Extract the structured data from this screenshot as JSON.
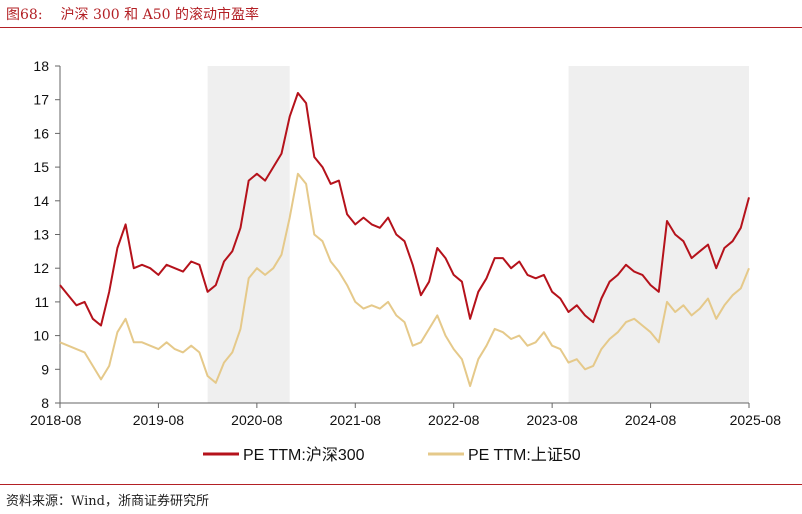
{
  "caption": {
    "figure_no": "图68:",
    "title": "沪深 300 和 A50 的滚动市盈率"
  },
  "source": "资料来源：Wind，浙商证券研究所",
  "chart_data": {
    "type": "line",
    "title": "沪深 300 和 A50 的滚动市盈率",
    "xlabel": "",
    "ylabel": "",
    "x_ticks": [
      "2018-08",
      "2019-08",
      "2020-08",
      "2021-08",
      "2022-08",
      "2023-08",
      "2024-08",
      "2025-08"
    ],
    "y_ticks": [
      8,
      9,
      10,
      11,
      12,
      13,
      14,
      15,
      16,
      17,
      18
    ],
    "ylim": [
      8,
      18
    ],
    "xlim": [
      "2018-08",
      "2025-08"
    ],
    "grid": false,
    "legend_position": "bottom",
    "shaded_periods": [
      {
        "start": "2020-02",
        "end": "2020-12"
      },
      {
        "start": "2023-10",
        "end": "2025-08"
      }
    ],
    "colors": {
      "shading": "#efefef",
      "axis": "#666666",
      "csi300": "#b5121b",
      "sse50": "#e5c98a"
    },
    "series": [
      {
        "name": "PE TTM:沪深300",
        "color": "#b5121b",
        "points": [
          [
            "2018-08",
            11.5
          ],
          [
            "2018-09",
            11.2
          ],
          [
            "2018-10",
            10.9
          ],
          [
            "2018-11",
            11.0
          ],
          [
            "2018-12",
            10.5
          ],
          [
            "2019-01",
            10.3
          ],
          [
            "2019-02",
            11.3
          ],
          [
            "2019-03",
            12.6
          ],
          [
            "2019-04",
            13.3
          ],
          [
            "2019-05",
            12.0
          ],
          [
            "2019-06",
            12.1
          ],
          [
            "2019-07",
            12.0
          ],
          [
            "2019-08",
            11.8
          ],
          [
            "2019-09",
            12.1
          ],
          [
            "2019-10",
            12.0
          ],
          [
            "2019-11",
            11.9
          ],
          [
            "2019-12",
            12.2
          ],
          [
            "2020-01",
            12.1
          ],
          [
            "2020-02",
            11.3
          ],
          [
            "2020-03",
            11.5
          ],
          [
            "2020-04",
            12.2
          ],
          [
            "2020-05",
            12.5
          ],
          [
            "2020-06",
            13.2
          ],
          [
            "2020-07",
            14.6
          ],
          [
            "2020-08",
            14.8
          ],
          [
            "2020-09",
            14.6
          ],
          [
            "2020-10",
            15.0
          ],
          [
            "2020-11",
            15.4
          ],
          [
            "2020-12",
            16.5
          ],
          [
            "2021-01",
            17.2
          ],
          [
            "2021-02",
            16.9
          ],
          [
            "2021-03",
            15.3
          ],
          [
            "2021-04",
            15.0
          ],
          [
            "2021-05",
            14.5
          ],
          [
            "2021-06",
            14.6
          ],
          [
            "2021-07",
            13.6
          ],
          [
            "2021-08",
            13.3
          ],
          [
            "2021-09",
            13.5
          ],
          [
            "2021-10",
            13.3
          ],
          [
            "2021-11",
            13.2
          ],
          [
            "2021-12",
            13.5
          ],
          [
            "2022-01",
            13.0
          ],
          [
            "2022-02",
            12.8
          ],
          [
            "2022-03",
            12.1
          ],
          [
            "2022-04",
            11.2
          ],
          [
            "2022-05",
            11.6
          ],
          [
            "2022-06",
            12.6
          ],
          [
            "2022-07",
            12.3
          ],
          [
            "2022-08",
            11.8
          ],
          [
            "2022-09",
            11.6
          ],
          [
            "2022-10",
            10.5
          ],
          [
            "2022-11",
            11.3
          ],
          [
            "2022-12",
            11.7
          ],
          [
            "2023-01",
            12.3
          ],
          [
            "2023-02",
            12.3
          ],
          [
            "2023-03",
            12.0
          ],
          [
            "2023-04",
            12.2
          ],
          [
            "2023-05",
            11.8
          ],
          [
            "2023-06",
            11.7
          ],
          [
            "2023-07",
            11.8
          ],
          [
            "2023-08",
            11.3
          ],
          [
            "2023-09",
            11.1
          ],
          [
            "2023-10",
            10.7
          ],
          [
            "2023-11",
            10.9
          ],
          [
            "2023-12",
            10.6
          ],
          [
            "2024-01",
            10.4
          ],
          [
            "2024-02",
            11.1
          ],
          [
            "2024-03",
            11.6
          ],
          [
            "2024-04",
            11.8
          ],
          [
            "2024-05",
            12.1
          ],
          [
            "2024-06",
            11.9
          ],
          [
            "2024-07",
            11.8
          ],
          [
            "2024-08",
            11.5
          ],
          [
            "2024-09",
            11.3
          ],
          [
            "2024-10",
            13.4
          ],
          [
            "2024-11",
            13.0
          ],
          [
            "2024-12",
            12.8
          ],
          [
            "2025-01",
            12.3
          ],
          [
            "2025-02",
            12.5
          ],
          [
            "2025-03",
            12.7
          ],
          [
            "2025-04",
            12.0
          ],
          [
            "2025-05",
            12.6
          ],
          [
            "2025-06",
            12.8
          ],
          [
            "2025-07",
            13.2
          ],
          [
            "2025-08",
            14.1
          ]
        ]
      },
      {
        "name": "PE TTM:上证50",
        "color": "#e5c98a",
        "points": [
          [
            "2018-08",
            9.8
          ],
          [
            "2018-09",
            9.7
          ],
          [
            "2018-10",
            9.6
          ],
          [
            "2018-11",
            9.5
          ],
          [
            "2018-12",
            9.1
          ],
          [
            "2019-01",
            8.7
          ],
          [
            "2019-02",
            9.1
          ],
          [
            "2019-03",
            10.1
          ],
          [
            "2019-04",
            10.5
          ],
          [
            "2019-05",
            9.8
          ],
          [
            "2019-06",
            9.8
          ],
          [
            "2019-07",
            9.7
          ],
          [
            "2019-08",
            9.6
          ],
          [
            "2019-09",
            9.8
          ],
          [
            "2019-10",
            9.6
          ],
          [
            "2019-11",
            9.5
          ],
          [
            "2019-12",
            9.7
          ],
          [
            "2020-01",
            9.5
          ],
          [
            "2020-02",
            8.8
          ],
          [
            "2020-03",
            8.6
          ],
          [
            "2020-04",
            9.2
          ],
          [
            "2020-05",
            9.5
          ],
          [
            "2020-06",
            10.2
          ],
          [
            "2020-07",
            11.7
          ],
          [
            "2020-08",
            12.0
          ],
          [
            "2020-09",
            11.8
          ],
          [
            "2020-10",
            12.0
          ],
          [
            "2020-11",
            12.4
          ],
          [
            "2020-12",
            13.5
          ],
          [
            "2021-01",
            14.8
          ],
          [
            "2021-02",
            14.5
          ],
          [
            "2021-03",
            13.0
          ],
          [
            "2021-04",
            12.8
          ],
          [
            "2021-05",
            12.2
          ],
          [
            "2021-06",
            11.9
          ],
          [
            "2021-07",
            11.5
          ],
          [
            "2021-08",
            11.0
          ],
          [
            "2021-09",
            10.8
          ],
          [
            "2021-10",
            10.9
          ],
          [
            "2021-11",
            10.8
          ],
          [
            "2021-12",
            11.0
          ],
          [
            "2022-01",
            10.6
          ],
          [
            "2022-02",
            10.4
          ],
          [
            "2022-03",
            9.7
          ],
          [
            "2022-04",
            9.8
          ],
          [
            "2022-05",
            10.2
          ],
          [
            "2022-06",
            10.6
          ],
          [
            "2022-07",
            10.0
          ],
          [
            "2022-08",
            9.6
          ],
          [
            "2022-09",
            9.3
          ],
          [
            "2022-10",
            8.5
          ],
          [
            "2022-11",
            9.3
          ],
          [
            "2022-12",
            9.7
          ],
          [
            "2023-01",
            10.2
          ],
          [
            "2023-02",
            10.1
          ],
          [
            "2023-03",
            9.9
          ],
          [
            "2023-04",
            10.0
          ],
          [
            "2023-05",
            9.7
          ],
          [
            "2023-06",
            9.8
          ],
          [
            "2023-07",
            10.1
          ],
          [
            "2023-08",
            9.7
          ],
          [
            "2023-09",
            9.6
          ],
          [
            "2023-10",
            9.2
          ],
          [
            "2023-11",
            9.3
          ],
          [
            "2023-12",
            9.0
          ],
          [
            "2024-01",
            9.1
          ],
          [
            "2024-02",
            9.6
          ],
          [
            "2024-03",
            9.9
          ],
          [
            "2024-04",
            10.1
          ],
          [
            "2024-05",
            10.4
          ],
          [
            "2024-06",
            10.5
          ],
          [
            "2024-07",
            10.3
          ],
          [
            "2024-08",
            10.1
          ],
          [
            "2024-09",
            9.8
          ],
          [
            "2024-10",
            11.0
          ],
          [
            "2024-11",
            10.7
          ],
          [
            "2024-12",
            10.9
          ],
          [
            "2025-01",
            10.6
          ],
          [
            "2025-02",
            10.8
          ],
          [
            "2025-03",
            11.1
          ],
          [
            "2025-04",
            10.5
          ],
          [
            "2025-05",
            10.9
          ],
          [
            "2025-06",
            11.2
          ],
          [
            "2025-07",
            11.4
          ],
          [
            "2025-08",
            12.0
          ]
        ]
      }
    ]
  }
}
